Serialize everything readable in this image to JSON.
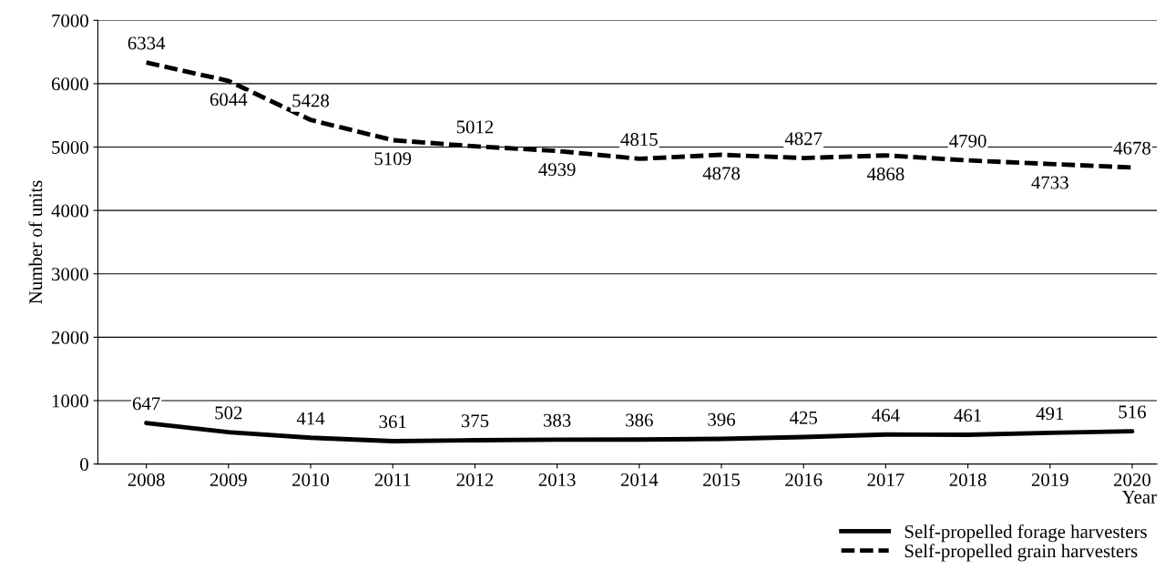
{
  "chart_data": {
    "type": "line",
    "xlabel": "Year",
    "ylabel": "Number of units",
    "categories": [
      "2008",
      "2009",
      "2010",
      "2011",
      "2012",
      "2013",
      "2014",
      "2015",
      "2016",
      "2017",
      "2018",
      "2019",
      "2020"
    ],
    "series": [
      {
        "name": "Self-propelled forage harvesters",
        "color": "#000000",
        "line_style": "solid",
        "values": [
          647,
          502,
          414,
          361,
          375,
          383,
          386,
          396,
          425,
          464,
          461,
          491,
          516
        ]
      },
      {
        "name": "Self-propelled grain harvesters",
        "color": "#000000",
        "line_style": "dashed",
        "values": [
          6334,
          6044,
          5428,
          5109,
          5012,
          4939,
          4815,
          4878,
          4827,
          4868,
          4790,
          4733,
          4678
        ]
      }
    ],
    "ylim": [
      0,
      7000
    ],
    "yticks": [
      0,
      1000,
      2000,
      3000,
      4000,
      5000,
      6000,
      7000
    ],
    "grid": "y",
    "legend": "bottom right",
    "data_labels": true,
    "marker": "none"
  }
}
